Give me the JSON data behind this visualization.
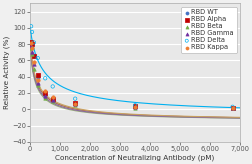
{
  "title": "",
  "xlabel": "Concentration of Neutralizing Antibody (pM)",
  "ylabel": "Relative Activity (%)",
  "xlim": [
    0,
    7000
  ],
  "ylim": [
    -40,
    130
  ],
  "yticks": [
    -40,
    -20,
    0,
    20,
    40,
    60,
    80,
    100,
    120
  ],
  "xticks": [
    0,
    1000,
    2000,
    3000,
    4000,
    5000,
    6000,
    7000
  ],
  "series": [
    {
      "name": "RBD WT",
      "color": "#4472c4",
      "marker": "o",
      "marker_face": "#4472c4",
      "curve_color": "#9e9ead",
      "points_x": [
        30,
        60,
        125,
        250,
        500,
        750,
        1500,
        3500,
        6750
      ],
      "points_y": [
        82,
        80,
        65,
        40,
        18,
        12,
        7,
        3,
        2
      ],
      "ic50": 200,
      "hill": 0.85,
      "ymin": -15,
      "ymax": 85
    },
    {
      "name": "RBD Alpha",
      "color": "#c00000",
      "marker": "s",
      "marker_face": "#c00000",
      "curve_color": "#b07050",
      "points_x": [
        30,
        60,
        125,
        250,
        500,
        750,
        1500,
        3500,
        6750
      ],
      "points_y": [
        83,
        80,
        65,
        42,
        20,
        13,
        8,
        4,
        2
      ],
      "ic50": 200,
      "hill": 0.85,
      "ymin": -15,
      "ymax": 85
    },
    {
      "name": "RBD Beta",
      "color": "#70ad47",
      "marker": "^",
      "marker_face": "#70ad47",
      "curve_color": "#9aaf7a",
      "points_x": [
        30,
        60,
        125,
        250,
        500,
        750,
        1500,
        3500,
        6750
      ],
      "points_y": [
        75,
        68,
        50,
        30,
        14,
        10,
        5,
        2,
        1
      ],
      "ic50": 175,
      "hill": 0.85,
      "ymin": -15,
      "ymax": 80
    },
    {
      "name": "RBD Gamma",
      "color": "#7030a0",
      "marker": "^",
      "marker_face": "#7030a0",
      "curve_color": "#8a6a9a",
      "points_x": [
        30,
        60,
        125,
        250,
        500,
        750,
        1500,
        3500,
        6750
      ],
      "points_y": [
        78,
        70,
        55,
        32,
        16,
        11,
        6,
        3,
        1
      ],
      "ic50": 185,
      "hill": 0.85,
      "ymin": -15,
      "ymax": 82
    },
    {
      "name": "RBD Delta",
      "color": "#00b0f0",
      "marker": "o",
      "marker_face": "none",
      "marker_edge": "#00b0f0",
      "curve_color": "#00b0f0",
      "points_x": [
        30,
        60,
        125,
        250,
        500,
        750,
        1500,
        3500,
        6750
      ],
      "points_y": [
        102,
        95,
        82,
        63,
        38,
        28,
        13,
        5,
        3
      ],
      "ic50": 450,
      "hill": 0.85,
      "ymin": -8,
      "ymax": 102
    },
    {
      "name": "RBD Kappa",
      "color": "#ed7d31",
      "marker": "o",
      "marker_face": "#ed7d31",
      "curve_color": "#c8a060",
      "points_x": [
        30,
        60,
        125,
        250,
        500,
        750,
        1500,
        3500,
        6750
      ],
      "points_y": [
        82,
        75,
        58,
        36,
        22,
        15,
        7,
        3,
        2
      ],
      "ic50": 220,
      "hill": 0.85,
      "ymin": -15,
      "ymax": 85
    }
  ],
  "plot_bg": "#e8e8e8",
  "fig_bg": "#f0f0f0",
  "grid_color": "#ffffff",
  "legend_fontsize": 4.8,
  "axis_fontsize": 5.2,
  "tick_fontsize": 4.8
}
